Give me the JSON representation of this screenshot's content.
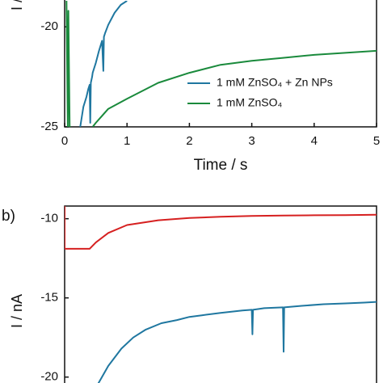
{
  "chart_data": [
    {
      "type": "line",
      "x_label": "Time / s",
      "y_label": "I / nA",
      "xlim": [
        0,
        5
      ],
      "xticks": [
        0,
        1,
        2,
        3,
        4,
        5
      ],
      "ylim": [
        -25,
        -18.7
      ],
      "yticks": [
        -25,
        -20
      ],
      "series": [
        {
          "name": "1 mM ZnSO₄ + Zn NPs",
          "color": "#1f77a0",
          "x": [
            0.25,
            0.3,
            0.35,
            0.38,
            0.4,
            0.41,
            0.42,
            0.44,
            0.45,
            0.5,
            0.55,
            0.6,
            0.62,
            0.63,
            0.65,
            0.7,
            0.8,
            0.9,
            1.0
          ],
          "values": [
            -25,
            -24,
            -23.5,
            -23.1,
            -22.9,
            -24.8,
            -22.8,
            -22.5,
            -22.3,
            -21.8,
            -21.2,
            -20.7,
            -22.2,
            -20.5,
            -20.3,
            -19.9,
            -19.3,
            -18.9,
            -18.7
          ]
        },
        {
          "name": "1 mM ZnSO₄",
          "color": "#1a8a3c",
          "x": [
            0.03,
            0.05,
            0.06,
            0.08,
            0.1,
            0.12,
            0.45,
            0.5,
            0.7,
            1,
            1.5,
            2,
            2.5,
            3,
            3.5,
            4,
            4.5,
            5
          ],
          "values": [
            -18.7,
            -25,
            -19.2,
            -25,
            -25,
            null,
            -25,
            -24.8,
            -24.1,
            -23.6,
            -22.8,
            -22.3,
            -21.9,
            -21.7,
            -21.55,
            -21.4,
            -21.3,
            -21.2
          ]
        }
      ]
    },
    {
      "type": "line",
      "panel_label": "b)",
      "y_label": "I / nA",
      "xlim": [
        0,
        5
      ],
      "ylim": [
        -20.4,
        -9.2
      ],
      "yticks": [
        -20,
        -15,
        -10
      ],
      "series": [
        {
          "color": "#d62020",
          "x": [
            0,
            0,
            0.02,
            0.4,
            0.5,
            0.7,
            1,
            1.5,
            2,
            2.5,
            3,
            3.5,
            4,
            4.5,
            5
          ],
          "values": [
            -9.2,
            -11.9,
            -11.9,
            -11.9,
            -11.5,
            -10.9,
            -10.4,
            -10.1,
            -9.95,
            -9.88,
            -9.83,
            -9.8,
            -9.78,
            -9.77,
            -9.75
          ]
        },
        {
          "color": "#1f77a0",
          "x": [
            0.54,
            0.7,
            0.91,
            1.1,
            1.3,
            1.55,
            1.8,
            2.0,
            2.2,
            2.5,
            2.85,
            3.0,
            3.01,
            3.02,
            3.2,
            3.5,
            3.51,
            3.52,
            3.8,
            4.15,
            4.5,
            4.8,
            5
          ],
          "values": [
            -20.4,
            -19.3,
            -18.2,
            -17.5,
            -17.0,
            -16.6,
            -16.4,
            -16.2,
            -16.1,
            -15.95,
            -15.8,
            -15.75,
            -17.3,
            -15.75,
            -15.65,
            -15.6,
            -18.4,
            -15.6,
            -15.5,
            -15.4,
            -15.35,
            -15.3,
            -15.25
          ]
        }
      ]
    }
  ]
}
